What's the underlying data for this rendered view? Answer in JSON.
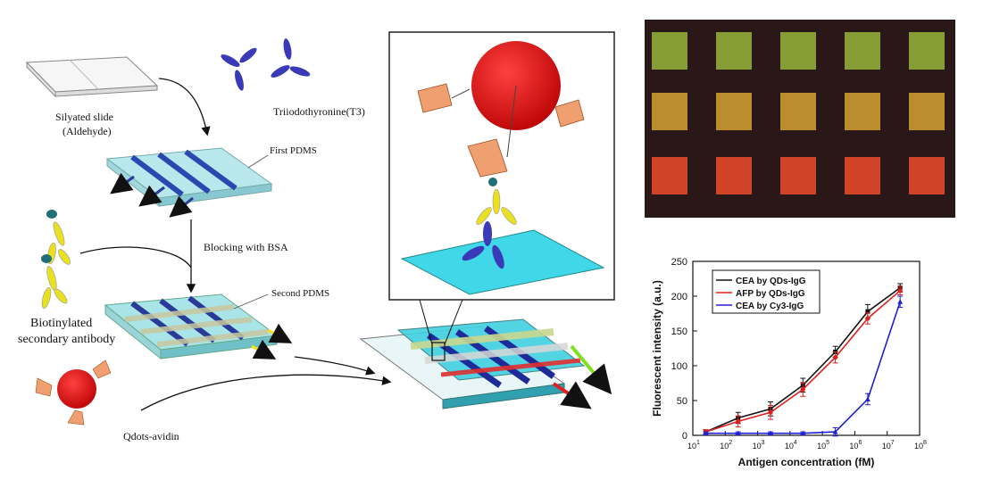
{
  "labels": {
    "silyated_slide": "Silyated slide",
    "aldehyde": "(Aldehyde)",
    "t3": "Triiodothyronine(T3)",
    "first_pdms": "First PDMS",
    "blocking": "Blocking with BSA",
    "second_pdms": "Second PDMS",
    "biotinylated_1": "Biotinylated",
    "biotinylated_2": "secondary antibody",
    "qdots_avidin": "Qdots-avidin"
  },
  "colors": {
    "qdot_red": "#e01818",
    "antibody_yellow": "#e8e020",
    "t3_blue": "#3a3ab8",
    "channel_cyan": "#33d6e0",
    "arrow_yellow": "#f0e020",
    "arrow_green": "#80e020",
    "arrow_red": "#e02020",
    "array_bg": "#2a1818",
    "spot_green": "#8ea838",
    "spot_orange": "#c89830",
    "spot_red": "#e04828"
  },
  "array_image": {
    "rows": [
      {
        "color": "#8ea838",
        "count": 5
      },
      {
        "color": "#c89830",
        "count": 5
      },
      {
        "color": "#e04828",
        "count": 5
      }
    ]
  },
  "chart_data": {
    "type": "line",
    "xlabel": "Antigen concentration (fM)",
    "ylabel": "Fluorescent intensity (a.u.)",
    "xscale": "log",
    "xlim_exp": [
      1,
      8
    ],
    "ylim": [
      0,
      250
    ],
    "yticks": [
      0,
      50,
      100,
      150,
      200,
      250
    ],
    "xtick_labels": [
      "10",
      "10",
      "10",
      "10",
      "10",
      "10",
      "10",
      "10"
    ],
    "xtick_exps": [
      "1",
      "2",
      "3",
      "4",
      "5",
      "6",
      "7",
      "8"
    ],
    "legend_position": "top-left",
    "series": [
      {
        "name": "CEA by QDs-IgG",
        "color": "#111111",
        "marker": "square",
        "x": [
          25,
          250,
          2500,
          25000,
          250000,
          2500000,
          25000000
        ],
        "y": [
          5,
          25,
          38,
          72,
          120,
          178,
          212
        ],
        "err": [
          3,
          8,
          10,
          10,
          8,
          10,
          6
        ]
      },
      {
        "name": "AFP by QDs-IgG",
        "color": "#e02020",
        "marker": "circle",
        "x": [
          25,
          250,
          2500,
          25000,
          250000,
          2500000,
          25000000
        ],
        "y": [
          5,
          20,
          33,
          66,
          112,
          168,
          208
        ],
        "err": [
          3,
          8,
          10,
          10,
          8,
          8,
          6
        ]
      },
      {
        "name": "CEA by Cy3-IgG",
        "color": "#2020d8",
        "marker": "triangle",
        "x": [
          25,
          250,
          2500,
          25000,
          250000,
          2500000,
          25000000
        ],
        "y": [
          3,
          3,
          3,
          3,
          5,
          52,
          192
        ],
        "err": [
          2,
          2,
          2,
          2,
          6,
          8,
          8
        ]
      }
    ]
  }
}
